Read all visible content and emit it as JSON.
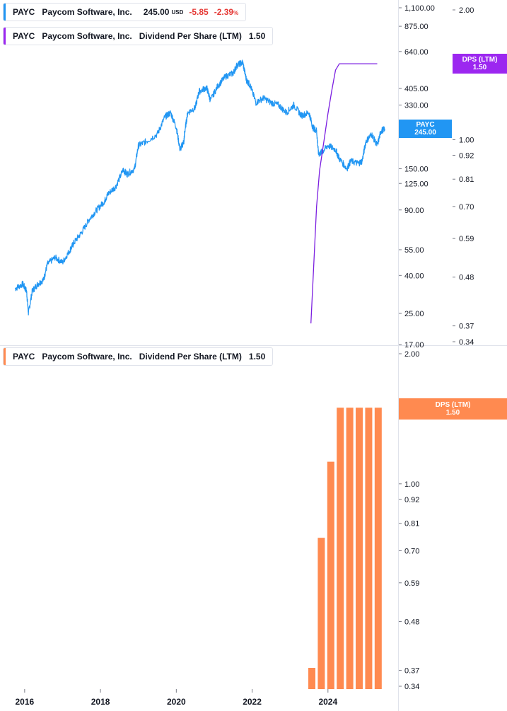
{
  "legends": {
    "price": {
      "ticker": "PAYC",
      "name": "Paycom Software, Inc.",
      "price": "245.00",
      "currency": "USD",
      "change": "-5.85",
      "change_pct": "-2.39",
      "pct_sign": "%",
      "color": "#2196f3"
    },
    "dps_top": {
      "ticker": "PAYC",
      "name": "Paycom Software, Inc.",
      "metric": "Dividend Per Share (LTM)",
      "value": "1.50",
      "color": "#9c27f0"
    },
    "dps_bottom": {
      "ticker": "PAYC",
      "name": "Paycom Software, Inc.",
      "metric": "Dividend Per Share (LTM)",
      "value": "1.50",
      "color": "#ff8a50"
    }
  },
  "tags": {
    "payc": {
      "line1": "PAYC",
      "line2": "245.00",
      "color": "#2196f3"
    },
    "dps_top": {
      "line1": "DPS (LTM)",
      "line2": "1.50",
      "color": "#9c27f0"
    },
    "dps_bottom": {
      "line1": "DPS (LTM)",
      "line2": "1.50",
      "color": "#ff8a50"
    }
  },
  "chart_data": [
    {
      "type": "line",
      "title": "",
      "price_axis": {
        "scale": "log",
        "ticks": [
          "1,100.00",
          "875.00",
          "640.00",
          "405.00",
          "330.00",
          "150.00",
          "125.00",
          "90.00",
          "55.00",
          "40.00",
          "25.00",
          "17.00"
        ],
        "range": [
          17,
          1200
        ]
      },
      "dps_axis": {
        "scale": "log",
        "ticks": [
          "2.00",
          "1.00",
          "0.92",
          "0.81",
          "0.70",
          "0.59",
          "0.48",
          "0.37",
          "0.34"
        ],
        "range": [
          0.34,
          2.0
        ]
      },
      "series": [
        {
          "name": "PAYC",
          "color": "#2196f3",
          "x": [
            2015.75,
            2015.95,
            2016.05,
            2016.1,
            2016.2,
            2016.35,
            2016.5,
            2016.6,
            2016.8,
            2017.0,
            2017.2,
            2017.3,
            2017.5,
            2017.7,
            2017.9,
            2018.1,
            2018.2,
            2018.4,
            2018.6,
            2018.7,
            2018.9,
            2019.0,
            2019.2,
            2019.5,
            2019.7,
            2019.85,
            2020.0,
            2020.1,
            2020.2,
            2020.22,
            2020.3,
            2020.5,
            2020.6,
            2020.8,
            2020.9,
            2021.1,
            2021.3,
            2021.5,
            2021.6,
            2021.75,
            2021.85,
            2021.95,
            2022.1,
            2022.3,
            2022.5,
            2022.7,
            2022.9,
            2023.1,
            2023.3,
            2023.5,
            2023.6,
            2023.7,
            2023.75,
            2023.85,
            2024.0,
            2024.2,
            2024.3,
            2024.5,
            2024.6,
            2024.8,
            2024.9,
            2025.0,
            2025.15,
            2025.3,
            2025.4,
            2025.5
          ],
          "values": [
            34,
            36,
            33,
            25,
            33,
            36,
            38,
            46,
            50,
            47,
            55,
            60,
            68,
            80,
            90,
            100,
            110,
            120,
            148,
            140,
            150,
            200,
            210,
            230,
            285,
            300,
            250,
            190,
            210,
            235,
            300,
            320,
            390,
            410,
            350,
            420,
            470,
            490,
            540,
            560,
            450,
            420,
            340,
            360,
            340,
            330,
            300,
            330,
            290,
            300,
            250,
            240,
            180,
            185,
            200,
            190,
            170,
            150,
            165,
            160,
            165,
            210,
            230,
            200,
            240,
            245
          ]
        },
        {
          "name": "Dividend Per Share (LTM)",
          "color": "#7b1fe0",
          "x": [
            2023.55,
            2023.62,
            2023.7,
            2023.78,
            2023.9,
            2024.0,
            2024.1,
            2024.2,
            2024.3,
            2024.5,
            2024.8,
            2025.1,
            2025.3
          ],
          "values": [
            0.375,
            0.5,
            0.7,
            0.85,
            1.0,
            1.15,
            1.3,
            1.45,
            1.5,
            1.5,
            1.5,
            1.5,
            1.5
          ]
        }
      ]
    },
    {
      "type": "bar",
      "title": "",
      "axis": {
        "scale": "log",
        "ticks": [
          "2.00",
          "1.00",
          "0.92",
          "0.81",
          "0.70",
          "0.59",
          "0.48",
          "0.37",
          "0.34"
        ],
        "range": [
          0.34,
          2.0
        ]
      },
      "series": [
        {
          "name": "Dividend Per Share (LTM)",
          "color": "#ff8a50",
          "x": [
            2023.5,
            2023.75,
            2024.0,
            2024.25,
            2024.5,
            2024.75,
            2025.0,
            2025.25
          ],
          "values": [
            0.375,
            0.75,
            1.125,
            1.5,
            1.5,
            1.5,
            1.5,
            1.5
          ]
        }
      ]
    }
  ],
  "x_axis": {
    "ticks": [
      "2016",
      "2018",
      "2020",
      "2022",
      "2024"
    ]
  }
}
